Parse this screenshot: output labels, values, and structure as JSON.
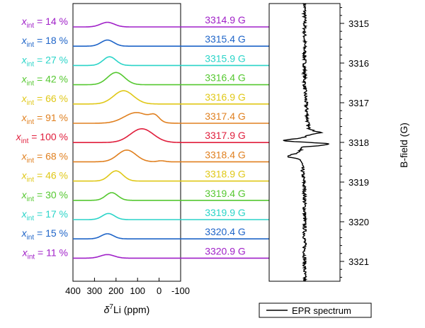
{
  "chart_data": [
    {
      "type": "line",
      "panel": "nmr-spectra",
      "xlabel_prefix": "δ",
      "xlabel_sup": "7",
      "xlabel_rest": "Li (ppm)",
      "xlim": [
        400,
        -100
      ],
      "x_ticks": [
        "400",
        "300",
        "200",
        "100",
        "0",
        "-100"
      ],
      "row_label_var": "x",
      "row_label_sub": "int",
      "series": [
        {
          "name": "14 %",
          "field": "3314.9 G",
          "color": "#a020c8",
          "peak_ppm": 240,
          "height": 0.9,
          "width": 45,
          "shoulder": null
        },
        {
          "name": "18 %",
          "field": "3315.4 G",
          "color": "#1e64c8",
          "peak_ppm": 240,
          "height": 1.2,
          "width": 42,
          "shoulder": null
        },
        {
          "name": "27 %",
          "field": "3315.9 G",
          "color": "#2ad4c8",
          "peak_ppm": 230,
          "height": 1.7,
          "width": 42,
          "shoulder": null
        },
        {
          "name": "42 %",
          "field": "3316.4 G",
          "color": "#55c830",
          "peak_ppm": 200,
          "height": 2.4,
          "width": 55,
          "shoulder": null
        },
        {
          "name": "66 %",
          "field": "3316.9 G",
          "color": "#e0c818",
          "peak_ppm": 165,
          "height": 2.6,
          "width": 65,
          "shoulder": null
        },
        {
          "name": "91 %",
          "field": "3317.4 G",
          "color": "#e08020",
          "peak_ppm": 105,
          "height": 2.1,
          "width": 80,
          "shoulder": {
            "ppm": 20,
            "height": 1.1,
            "width": 30
          }
        },
        {
          "name": "100 %",
          "field": "3317.9 G",
          "color": "#e01e3c",
          "peak_ppm": 80,
          "height": 2.7,
          "width": 75,
          "shoulder": null
        },
        {
          "name": "68 %",
          "field": "3318.4 G",
          "color": "#e08020",
          "peak_ppm": 150,
          "height": 2.3,
          "width": 60,
          "shoulder": {
            "ppm": -10,
            "height": 0.2,
            "width": 25
          }
        },
        {
          "name": "46 %",
          "field": "3318.9 G",
          "color": "#e0c818",
          "peak_ppm": 200,
          "height": 2.0,
          "width": 45,
          "shoulder": null
        },
        {
          "name": "30 %",
          "field": "3319.4 G",
          "color": "#55c830",
          "peak_ppm": 220,
          "height": 1.5,
          "width": 40,
          "shoulder": null
        },
        {
          "name": "17 %",
          "field": "3319.9 G",
          "color": "#2ad4c8",
          "peak_ppm": 235,
          "height": 1.2,
          "width": 40,
          "shoulder": null
        },
        {
          "name": "15 %",
          "field": "3320.4 G",
          "color": "#1e64c8",
          "peak_ppm": 240,
          "height": 1.0,
          "width": 40,
          "shoulder": null
        },
        {
          "name": "11 %",
          "field": "3320.9 G",
          "color": "#a020c8",
          "peak_ppm": 240,
          "height": 0.7,
          "width": 45,
          "shoulder": null
        }
      ]
    },
    {
      "type": "line",
      "panel": "epr-spectrum",
      "ylabel": "B-field (G)",
      "ylim": [
        3314.5,
        3321.5
      ],
      "y_ticks": [
        "3315",
        "3316",
        "3317",
        "3318",
        "3319",
        "3320",
        "3321"
      ],
      "legend": "EPR spectrum",
      "legend_position": "bottom",
      "baseline_signal": 0.5,
      "signal_range": [
        0,
        1
      ],
      "features": [
        {
          "field": 3317.75,
          "signal": 0.72
        },
        {
          "field": 3317.97,
          "signal": 0.1
        },
        {
          "field": 3318.03,
          "signal": 0.96
        },
        {
          "field": 3318.35,
          "signal": 0.3
        }
      ]
    }
  ]
}
